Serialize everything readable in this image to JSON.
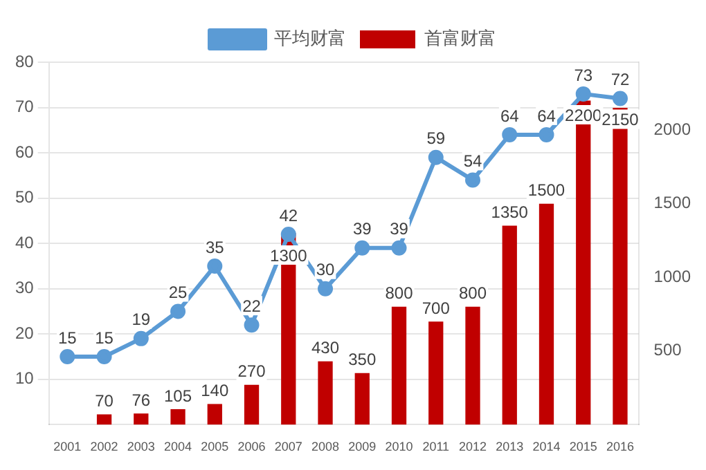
{
  "chart_data": {
    "type": "bar",
    "categories": [
      "2001",
      "2002",
      "2003",
      "2004",
      "2005",
      "2006",
      "2007",
      "2008",
      "2009",
      "2010",
      "2011",
      "2012",
      "2013",
      "2014",
      "2015",
      "2016"
    ],
    "series": [
      {
        "name": "首富财富",
        "color": "#c00000",
        "axis": "y2",
        "values": [
          null,
          70,
          76,
          105,
          140,
          270,
          1300,
          430,
          350,
          800,
          700,
          800,
          1350,
          1500,
          2200,
          2150
        ]
      },
      {
        "name": "平均财富",
        "type": "line",
        "color": "#5b9bd5",
        "axis": "y",
        "marker": "circle",
        "values": [
          15,
          15,
          19,
          25,
          35,
          22,
          42,
          30,
          39,
          39,
          59,
          54,
          64,
          64,
          73,
          72
        ]
      }
    ],
    "ylim": [
      0,
      80
    ],
    "yticks": [
      10,
      20,
      30,
      40,
      50,
      60,
      70,
      80
    ],
    "y2lim": [
      0,
      2460
    ],
    "y2ticks": [
      500,
      1000,
      1500,
      2000
    ],
    "grid": "y",
    "legend": "top",
    "data_labels": true
  }
}
